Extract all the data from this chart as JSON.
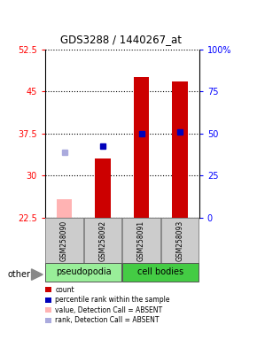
{
  "title": "GDS3288 / 1440267_at",
  "samples": [
    "GSM258090",
    "GSM258092",
    "GSM258091",
    "GSM258093"
  ],
  "ylim_left": [
    22.5,
    52.5
  ],
  "yticks_left": [
    22.5,
    30,
    37.5,
    45,
    52.5
  ],
  "ytick_labels_left": [
    "22.5",
    "30",
    "37.5",
    "45",
    "52.5"
  ],
  "yticks_right": [
    0,
    25,
    50,
    75,
    100
  ],
  "ytick_labels_right": [
    "0",
    "25",
    "50",
    "75",
    "100%"
  ],
  "bar_values": [
    null,
    33.0,
    47.5,
    46.8
  ],
  "bar_absent_values": [
    25.8,
    null,
    null,
    null
  ],
  "rank_values": [
    null,
    35.2,
    37.5,
    37.8
  ],
  "rank_absent_values": [
    34.2,
    null,
    null,
    null
  ],
  "bar_color": "#cc0000",
  "bar_absent_color": "#ffb3b3",
  "rank_color": "#0000bb",
  "rank_absent_color": "#aaaadd",
  "group_colors": {
    "pseudopodia": "#99ee99",
    "cell bodies": "#44cc44"
  },
  "sample_bg_color": "#cccccc",
  "legend_items": [
    {
      "color": "#cc0000",
      "label": "count"
    },
    {
      "color": "#0000bb",
      "label": "percentile rank within the sample"
    },
    {
      "color": "#ffb3b3",
      "label": "value, Detection Call = ABSENT"
    },
    {
      "color": "#aaaadd",
      "label": "rank, Detection Call = ABSENT"
    }
  ],
  "bar_width": 0.4,
  "figsize": [
    2.9,
    3.84
  ],
  "dpi": 100
}
